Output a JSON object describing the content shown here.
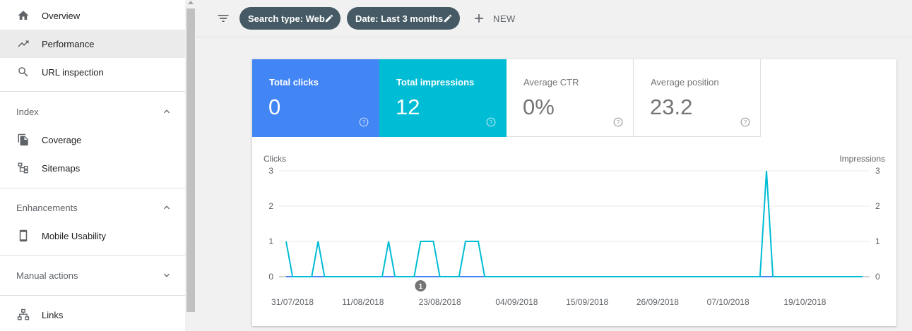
{
  "sidebar": {
    "items": [
      {
        "label": "Overview",
        "icon": "home-icon"
      },
      {
        "label": "Performance",
        "icon": "trending-up-icon",
        "active": true
      },
      {
        "label": "URL inspection",
        "icon": "search-icon"
      }
    ],
    "sections": [
      {
        "title": "Index",
        "expanded": true,
        "items": [
          {
            "label": "Coverage",
            "icon": "file-copy-icon"
          },
          {
            "label": "Sitemaps",
            "icon": "sitemap-icon"
          }
        ]
      },
      {
        "title": "Enhancements",
        "expanded": true,
        "items": [
          {
            "label": "Mobile Usability",
            "icon": "smartphone-icon"
          }
        ]
      },
      {
        "title": "Manual actions",
        "expanded": false,
        "items": []
      }
    ],
    "bottom_items": [
      {
        "label": "Links",
        "icon": "links-icon"
      }
    ]
  },
  "filters": {
    "search_type": "Search type: Web",
    "date": "Date: Last 3 months",
    "new_label": "NEW"
  },
  "metrics": {
    "total_clicks": {
      "label": "Total clicks",
      "value": "0"
    },
    "total_impressions": {
      "label": "Total impressions",
      "value": "12"
    },
    "average_ctr": {
      "label": "Average CTR",
      "value": "0%"
    },
    "average_position": {
      "label": "Average position",
      "value": "23.2"
    }
  },
  "colors": {
    "clicks": "#4285f4",
    "impressions": "#00bcd4",
    "chip": "#455a64"
  },
  "chart_data": {
    "type": "line",
    "ylabel_left": "Clicks",
    "ylabel_right": "Impressions",
    "ylim": [
      0,
      3
    ],
    "yticks": [
      0,
      1,
      2,
      3
    ],
    "x_start": "2018-07-30",
    "x_end": "2018-10-28",
    "x_tick_labels": [
      "31/07/2018",
      "11/08/2018",
      "23/08/2018",
      "04/09/2018",
      "15/09/2018",
      "26/09/2018",
      "07/10/2018",
      "19/10/2018"
    ],
    "x_tick_dates": [
      "2018-07-31",
      "2018-08-11",
      "2018-08-23",
      "2018-09-04",
      "2018-09-15",
      "2018-09-26",
      "2018-10-07",
      "2018-10-19"
    ],
    "annotation": {
      "label": "1",
      "date": "2018-08-20"
    },
    "series": [
      {
        "name": "Clicks",
        "color": "#4285f4",
        "points": [
          [
            "2018-07-30",
            0
          ],
          [
            "2018-10-28",
            0
          ]
        ]
      },
      {
        "name": "Impressions",
        "color": "#00bcd4",
        "points": [
          [
            "2018-07-30",
            1
          ],
          [
            "2018-07-31",
            0
          ],
          [
            "2018-08-03",
            0
          ],
          [
            "2018-08-04",
            1
          ],
          [
            "2018-08-05",
            0
          ],
          [
            "2018-08-14",
            0
          ],
          [
            "2018-08-15",
            1
          ],
          [
            "2018-08-16",
            0
          ],
          [
            "2018-08-19",
            0
          ],
          [
            "2018-08-20",
            1
          ],
          [
            "2018-08-21",
            1
          ],
          [
            "2018-08-22",
            1
          ],
          [
            "2018-08-23",
            0
          ],
          [
            "2018-08-26",
            0
          ],
          [
            "2018-08-27",
            1
          ],
          [
            "2018-08-28",
            1
          ],
          [
            "2018-08-29",
            1
          ],
          [
            "2018-08-30",
            0
          ],
          [
            "2018-10-12",
            0
          ],
          [
            "2018-10-13",
            3
          ],
          [
            "2018-10-14",
            0
          ],
          [
            "2018-10-28",
            0
          ]
        ]
      }
    ]
  }
}
